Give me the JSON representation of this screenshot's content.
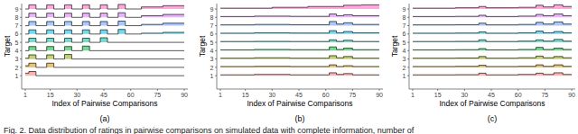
{
  "caption": "Fig. 2. Data distribution of ratings in pairwise comparisons on simulated data with complete information, number of",
  "chart_data": [
    {
      "type": "ridgeline",
      "title": "(a)",
      "x_label": "Index of Pairwise Comparisons",
      "y_label": "Target",
      "xlim": [
        -1,
        92
      ],
      "ylim": [
        -0.6,
        9.65
      ],
      "xticks": [
        1,
        15,
        30,
        45,
        60,
        75,
        90
      ],
      "yticks": [
        1,
        2,
        3,
        4,
        5,
        6,
        7,
        8,
        9
      ],
      "grid": false,
      "series": [
        {
          "name": "1",
          "target": 1,
          "color": "#F8766D",
          "x": [
            1,
            3,
            7,
            90
          ],
          "values": [
            1.3,
            1.5,
            1,
            1
          ]
        },
        {
          "name": "2",
          "target": 2,
          "color": "#D39200",
          "x": [
            1,
            3,
            7,
            13,
            17,
            90
          ],
          "values": [
            2.2,
            2.5,
            2,
            2.5,
            2,
            2
          ]
        },
        {
          "name": "3",
          "target": 3,
          "color": "#93AA00",
          "x": [
            1,
            3,
            7,
            13,
            17,
            23,
            27,
            90
          ],
          "values": [
            3.1,
            3.5,
            3,
            3.5,
            3,
            3.55,
            3,
            3
          ]
        },
        {
          "name": "4",
          "target": 4,
          "color": "#00BA38",
          "x": [
            1,
            3,
            7,
            13,
            17,
            23,
            27,
            33,
            37,
            90
          ],
          "values": [
            4,
            4.5,
            4,
            4.5,
            4,
            4.5,
            4,
            4.55,
            4,
            4
          ]
        },
        {
          "name": "5",
          "target": 5,
          "color": "#00C19F",
          "x": [
            1,
            3,
            7,
            13,
            17,
            23,
            27,
            33,
            37,
            43,
            47,
            90
          ],
          "values": [
            5,
            5.5,
            5,
            5.5,
            5,
            5.5,
            5,
            5.5,
            5,
            5.55,
            5,
            5
          ]
        },
        {
          "name": "6",
          "target": 6,
          "color": "#00B9E3",
          "x": [
            1,
            3,
            7,
            13,
            17,
            23,
            27,
            33,
            37,
            43,
            47,
            53,
            57,
            66,
            78,
            90
          ],
          "values": [
            6,
            6.5,
            6,
            6.5,
            6,
            6.5,
            6,
            6.5,
            6,
            6.5,
            6,
            6.55,
            6,
            6.1,
            6.2,
            6.2
          ]
        },
        {
          "name": "7",
          "target": 7,
          "color": "#619CFF",
          "x": [
            1,
            3,
            7,
            13,
            17,
            23,
            27,
            33,
            37,
            43,
            47,
            53,
            57,
            66,
            78,
            90
          ],
          "values": [
            7,
            7.5,
            7,
            7.5,
            7,
            7.5,
            7,
            7.5,
            7,
            7.5,
            7,
            7.55,
            7,
            7.15,
            7.3,
            7.3
          ]
        },
        {
          "name": "8",
          "target": 8,
          "color": "#DB72FB",
          "x": [
            1,
            3,
            7,
            13,
            17,
            23,
            27,
            33,
            37,
            43,
            47,
            53,
            57,
            66,
            78,
            90
          ],
          "values": [
            8,
            8.5,
            8,
            8.5,
            8,
            8.5,
            8,
            8.5,
            8,
            8.5,
            8,
            8.55,
            8,
            8.2,
            8.35,
            8.35
          ]
        },
        {
          "name": "9",
          "target": 9,
          "color": "#FF61C3",
          "x": [
            1,
            3,
            7,
            13,
            17,
            23,
            27,
            33,
            37,
            43,
            47,
            53,
            57,
            66,
            78,
            90
          ],
          "values": [
            9,
            9.5,
            9,
            9.5,
            9,
            9.5,
            9,
            9.5,
            9,
            9.5,
            9,
            9.55,
            9,
            9.25,
            9.4,
            9.4
          ]
        }
      ]
    },
    {
      "type": "ridgeline",
      "title": "(b)",
      "x_label": "Index of Pairwise Comparisons",
      "y_label": "Target",
      "xlim": [
        -1,
        92
      ],
      "ylim": [
        -0.6,
        9.65
      ],
      "xticks": [
        1,
        15,
        30,
        45,
        60,
        75,
        90
      ],
      "yticks": [
        1,
        2,
        3,
        4,
        5,
        6,
        7,
        8,
        9
      ],
      "grid": false,
      "series": [
        {
          "name": "1",
          "target": 1,
          "color": "#F8766D",
          "x": [
            1,
            20,
            40,
            62,
            66,
            70,
            75,
            90
          ],
          "values": [
            1.1,
            1.15,
            1.1,
            1.35,
            1.15,
            1.25,
            1.1,
            1.1
          ]
        },
        {
          "name": "2",
          "target": 2,
          "color": "#D39200",
          "x": [
            1,
            20,
            40,
            62,
            66,
            70,
            75,
            90
          ],
          "values": [
            2.1,
            2.12,
            2.1,
            2.3,
            2.1,
            2.2,
            2.1,
            2.1
          ]
        },
        {
          "name": "3",
          "target": 3,
          "color": "#93AA00",
          "x": [
            1,
            20,
            40,
            62,
            66,
            70,
            75,
            90
          ],
          "values": [
            3.1,
            3.15,
            3.1,
            3.4,
            3.15,
            3.3,
            3.1,
            3.1
          ]
        },
        {
          "name": "4",
          "target": 4,
          "color": "#00BA38",
          "x": [
            1,
            20,
            40,
            62,
            66,
            70,
            75,
            90
          ],
          "values": [
            4.1,
            4.15,
            4.12,
            4.45,
            4.15,
            4.3,
            4.12,
            4.12
          ]
        },
        {
          "name": "5",
          "target": 5,
          "color": "#00C19F",
          "x": [
            1,
            20,
            40,
            62,
            66,
            70,
            75,
            90
          ],
          "values": [
            5.1,
            5.12,
            5.1,
            5.3,
            5.12,
            5.25,
            5.1,
            5.1
          ]
        },
        {
          "name": "6",
          "target": 6,
          "color": "#00B9E3",
          "x": [
            1,
            20,
            40,
            62,
            66,
            70,
            75,
            90
          ],
          "values": [
            6.1,
            6.15,
            6.12,
            6.4,
            6.15,
            6.3,
            6.15,
            6.15
          ]
        },
        {
          "name": "7",
          "target": 7,
          "color": "#619CFF",
          "x": [
            1,
            20,
            40,
            62,
            66,
            70,
            75,
            90
          ],
          "values": [
            7.1,
            7.15,
            7.12,
            7.5,
            7.2,
            7.35,
            7.15,
            7.15
          ]
        },
        {
          "name": "8",
          "target": 8,
          "color": "#DB72FB",
          "x": [
            1,
            20,
            40,
            62,
            66,
            70,
            75,
            90
          ],
          "values": [
            8.1,
            8.15,
            8.12,
            8.4,
            8.2,
            8.3,
            8.2,
            8.2
          ]
        },
        {
          "name": "9",
          "target": 9,
          "color": "#FF61C3",
          "x": [
            1,
            30,
            50,
            70,
            80,
            90
          ],
          "values": [
            9.1,
            9.2,
            9.3,
            9.45,
            9.5,
            9.5
          ]
        }
      ]
    },
    {
      "type": "ridgeline",
      "title": "(c)",
      "x_label": "Index of Pairwise Comparisons",
      "y_label": "Target",
      "xlim": [
        -1,
        92
      ],
      "ylim": [
        -0.6,
        9.65
      ],
      "xticks": [
        1,
        15,
        30,
        45,
        60,
        75,
        90
      ],
      "yticks": [
        1,
        2,
        3,
        4,
        5,
        6,
        7,
        8,
        9
      ],
      "grid": false,
      "series": [
        {
          "name": "1",
          "target": 1,
          "color": "#F8766D",
          "x": [
            1,
            25,
            38,
            42,
            60,
            70,
            74,
            80,
            85,
            90
          ],
          "values": [
            1.1,
            1.12,
            1.3,
            1.1,
            1.15,
            1.3,
            1.15,
            1.35,
            1.15,
            1.15
          ]
        },
        {
          "name": "2",
          "target": 2,
          "color": "#D39200",
          "x": [
            1,
            25,
            38,
            42,
            60,
            70,
            74,
            80,
            85,
            90
          ],
          "values": [
            2.1,
            2.12,
            2.25,
            2.1,
            2.12,
            2.3,
            2.12,
            2.3,
            2.12,
            2.12
          ]
        },
        {
          "name": "3",
          "target": 3,
          "color": "#93AA00",
          "x": [
            1,
            25,
            38,
            42,
            60,
            70,
            74,
            80,
            85,
            90
          ],
          "values": [
            3.1,
            3.12,
            3.3,
            3.1,
            3.15,
            3.35,
            3.15,
            3.3,
            3.15,
            3.15
          ]
        },
        {
          "name": "4",
          "target": 4,
          "color": "#00BA38",
          "x": [
            1,
            25,
            38,
            42,
            60,
            70,
            74,
            80,
            85,
            90
          ],
          "values": [
            4.1,
            4.12,
            4.25,
            4.1,
            4.15,
            4.4,
            4.15,
            4.3,
            4.15,
            4.15
          ]
        },
        {
          "name": "5",
          "target": 5,
          "color": "#00C19F",
          "x": [
            1,
            25,
            38,
            42,
            60,
            70,
            74,
            80,
            85,
            90
          ],
          "values": [
            5.1,
            5.12,
            5.3,
            5.1,
            5.15,
            5.3,
            5.15,
            5.35,
            5.15,
            5.15
          ]
        },
        {
          "name": "6",
          "target": 6,
          "color": "#00B9E3",
          "x": [
            1,
            25,
            38,
            42,
            60,
            70,
            74,
            80,
            85,
            90
          ],
          "values": [
            6.1,
            6.12,
            6.25,
            6.1,
            6.15,
            6.35,
            6.15,
            6.3,
            6.15,
            6.15
          ]
        },
        {
          "name": "7",
          "target": 7,
          "color": "#619CFF",
          "x": [
            1,
            25,
            38,
            42,
            60,
            70,
            74,
            80,
            85,
            90
          ],
          "values": [
            7.1,
            7.12,
            7.3,
            7.1,
            7.15,
            7.4,
            7.2,
            7.45,
            7.2,
            7.2
          ]
        },
        {
          "name": "8",
          "target": 8,
          "color": "#DB72FB",
          "x": [
            1,
            25,
            38,
            42,
            60,
            70,
            74,
            80,
            85,
            90
          ],
          "values": [
            8.1,
            8.12,
            8.25,
            8.1,
            8.15,
            8.35,
            8.2,
            8.4,
            8.2,
            8.2
          ]
        },
        {
          "name": "9",
          "target": 9,
          "color": "#FF61C3",
          "x": [
            1,
            25,
            38,
            42,
            60,
            70,
            74,
            80,
            85,
            90
          ],
          "values": [
            9.1,
            9.15,
            9.3,
            9.15,
            9.2,
            9.45,
            9.25,
            9.5,
            9.3,
            9.3
          ]
        }
      ]
    }
  ]
}
